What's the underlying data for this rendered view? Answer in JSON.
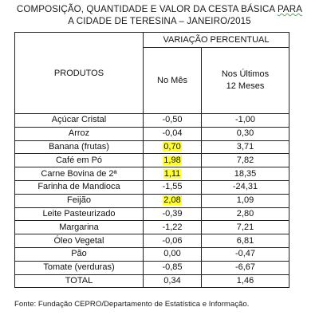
{
  "title": {
    "line1_a": "COMPOSIÇÃO, QUANTIDADE E VALOR DA CESTA BÁSICA ",
    "line1_b": "PARA",
    "line2": "A CIDADE DE TERESINA – JANEIRO/2015"
  },
  "table": {
    "col_products": "PRODUTOS",
    "col_variation": "VARIAÇÃO PERCENTUAL",
    "col_month": "No Mês",
    "col_12m_a": "Nos Últimos",
    "col_12m_b": "12 Meses",
    "rows": [
      {
        "product": "Açúcar Cristal",
        "month": "-0,50",
        "year": "-1,00",
        "highlight": false
      },
      {
        "product": "Arroz",
        "month": "-0,04",
        "year": "0,30",
        "highlight": false
      },
      {
        "product": "Banana (frutas)",
        "month": "0,70",
        "year": "3,71",
        "highlight": true
      },
      {
        "product": "Café em Pó",
        "month": "1,98",
        "year": "7,82",
        "highlight": true
      },
      {
        "product": "Carne Bovina de 2ª",
        "month": "1,11",
        "year": "18,35",
        "highlight": true
      },
      {
        "product": "Farinha de Mandioca",
        "month": "-1,55",
        "year": "-24,31",
        "highlight": false
      },
      {
        "product": "Feijão",
        "month": "2,08",
        "year": "1,09",
        "highlight": true
      },
      {
        "product": "Leite Pasteurizado",
        "month": "-0,39",
        "year": "2,80",
        "highlight": false
      },
      {
        "product": "Margarina",
        "month": "-1,22",
        "year": "7,21",
        "highlight": false
      },
      {
        "product": "Óleo Vegetal",
        "month": "-0,06",
        "year": "6,81",
        "highlight": false
      },
      {
        "product": "Pão",
        "month": "0,00",
        "year": "-0,47",
        "highlight": false
      },
      {
        "product": "Tomate (verduras)",
        "month": "-0,85",
        "year": "-6,67",
        "highlight": false
      },
      {
        "product": "TOTAL",
        "month": "0,34",
        "year": "1,46",
        "highlight": false
      }
    ]
  },
  "source": "Fonte: Fundação CEPRO/Departamento de Estatística e Informação.",
  "colors": {
    "highlight": "#ffff33",
    "border": "#222222"
  }
}
